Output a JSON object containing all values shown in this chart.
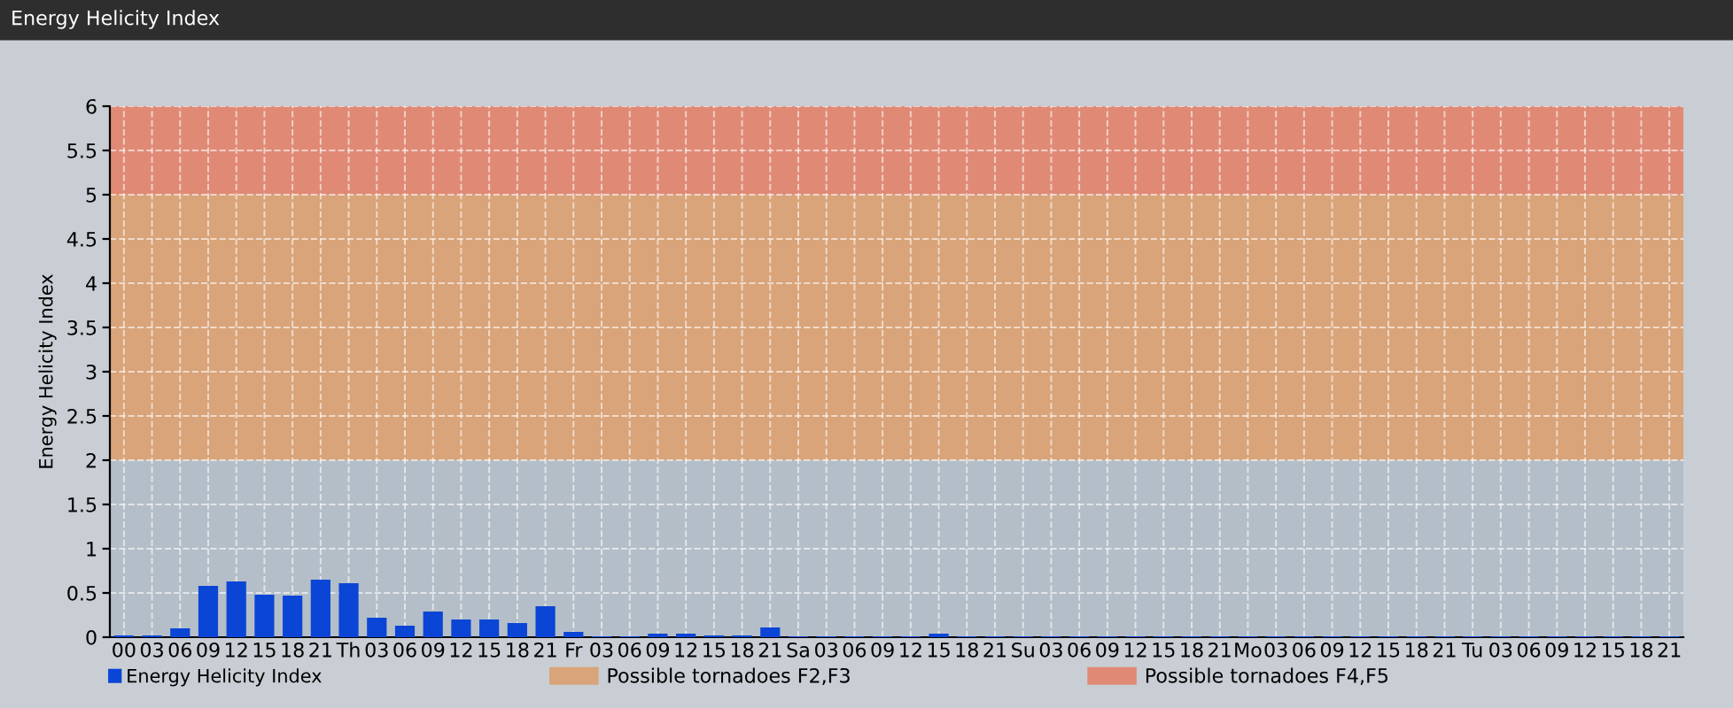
{
  "chart_data": {
    "type": "bar",
    "title": "Energy Helicity Index",
    "ylabel": "Energy Helicity Index",
    "categories": [
      "00",
      "03",
      "06",
      "09",
      "12",
      "15",
      "18",
      "21",
      "Th",
      "03",
      "06",
      "09",
      "12",
      "15",
      "18",
      "21",
      "Fr",
      "03",
      "06",
      "09",
      "12",
      "15",
      "18",
      "21",
      "Sa",
      "03",
      "06",
      "09",
      "12",
      "15",
      "18",
      "21",
      "Su",
      "03",
      "06",
      "09",
      "12",
      "15",
      "18",
      "21",
      "Mo",
      "03",
      "06",
      "09",
      "12",
      "15",
      "18",
      "21",
      "Tu",
      "03",
      "06",
      "09",
      "12",
      "15",
      "18",
      "21"
    ],
    "series": [
      {
        "name": "Energy Helicity Index",
        "color": "#0a45d6",
        "values": [
          0.02,
          0.02,
          0.1,
          0.58,
          0.63,
          0.48,
          0.47,
          0.65,
          0.61,
          0.22,
          0.13,
          0.29,
          0.2,
          0.2,
          0.16,
          0.35,
          0.06,
          0.01,
          0.01,
          0.04,
          0.04,
          0.02,
          0.02,
          0.11,
          0.01,
          0.01,
          0.01,
          0.01,
          0.01,
          0.04,
          0.01,
          0.01,
          0.01,
          0.01,
          0.01,
          0.01,
          0.01,
          0.01,
          0.01,
          0.01,
          0.01,
          0.01,
          0.01,
          0.01,
          0.01,
          0.01,
          0.01,
          0.01,
          0.01,
          0.01,
          0.01,
          0.01,
          0.01,
          0.01,
          0.01,
          0.01
        ]
      }
    ],
    "ylim": [
      0,
      6
    ],
    "yticks": [
      0,
      0.5,
      1,
      1.5,
      2,
      2.5,
      3,
      3.5,
      4,
      4.5,
      5,
      5.5,
      6
    ],
    "bands": [
      {
        "axis": "y",
        "from": 0,
        "to": 2,
        "color": "#b4bec8"
      },
      {
        "axis": "y",
        "from": 2,
        "to": 5,
        "label": "Possible tornadoes F2,F3",
        "color": "#d9a47a"
      },
      {
        "axis": "y",
        "from": 5,
        "to": 6,
        "label": "Possible tornadoes F4,F5",
        "color": "#e08a76"
      }
    ],
    "grid": true,
    "legend": "bottom left"
  }
}
